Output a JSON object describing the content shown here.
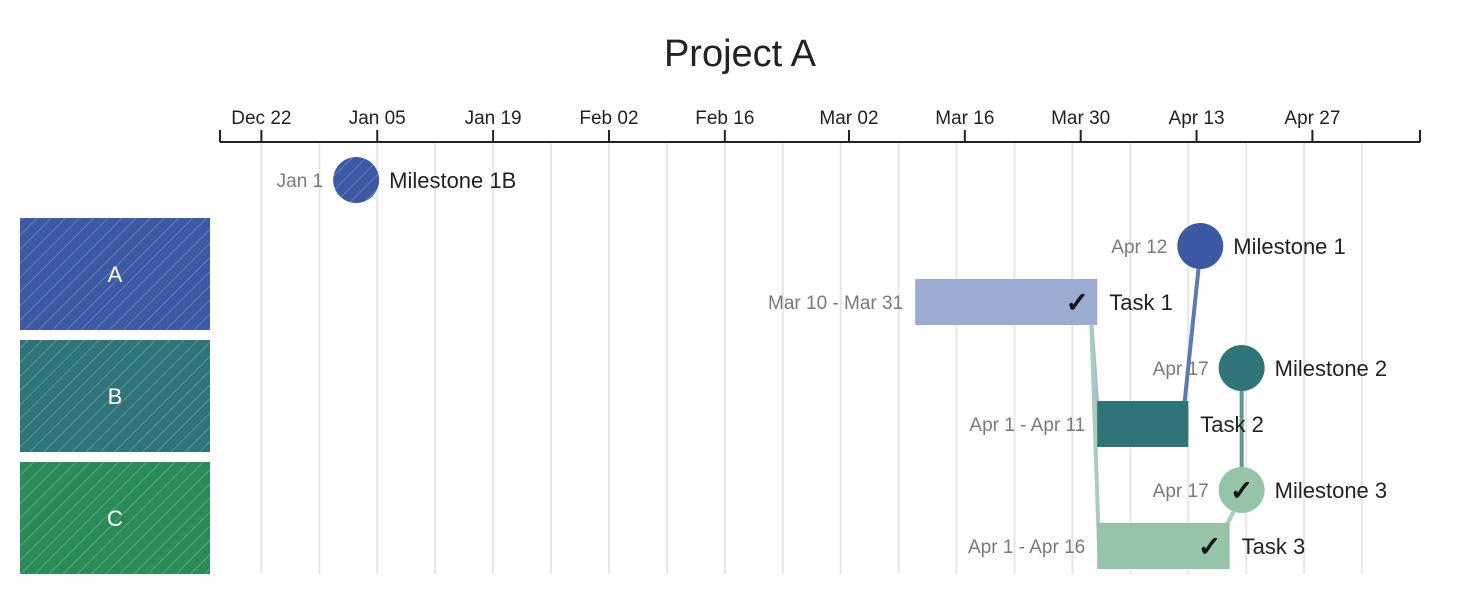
{
  "chart_data": {
    "type": "gantt",
    "title": "Project A",
    "x_axis": {
      "start": "2023-12-17",
      "end": "2024-05-10",
      "tick_labels": [
        "Dec 22",
        "Jan 05",
        "Jan 19",
        "Feb 02",
        "Feb 16",
        "Mar 02",
        "Mar 16",
        "Mar 30",
        "Apr 13",
        "Apr 27"
      ],
      "tick_dates": [
        "2023-12-22",
        "2024-01-05",
        "2024-01-19",
        "2024-02-02",
        "2024-02-16",
        "2024-03-02",
        "2024-03-16",
        "2024-03-30",
        "2024-04-13",
        "2024-04-27"
      ],
      "grid": true
    },
    "groups": [
      {
        "label": "A",
        "color": "#3b5aa3"
      },
      {
        "label": "B",
        "color": "#2e7478"
      },
      {
        "label": "C",
        "color": "#2a8a58"
      }
    ],
    "items": [
      {
        "id": "m1b",
        "kind": "milestone",
        "name": "Milestone 1B",
        "group": null,
        "date": "2024-01-01",
        "date_label": "Jan 1",
        "color": "#3b5aa3",
        "hatched": true,
        "done": false
      },
      {
        "id": "m1",
        "kind": "milestone",
        "name": "Milestone 1",
        "group": "A",
        "date": "2024-04-12",
        "date_label": "Apr 12",
        "color": "#3b5aa3",
        "hatched": false,
        "done": false
      },
      {
        "id": "t1",
        "kind": "task",
        "name": "Task 1",
        "group": "A",
        "start": "2024-03-10",
        "end": "2024-03-31",
        "date_label": "Mar 10 - Mar 31",
        "color": "#9babd2",
        "hatched": true,
        "done": true
      },
      {
        "id": "m2",
        "kind": "milestone",
        "name": "Milestone 2",
        "group": "B",
        "date": "2024-04-17",
        "date_label": "Apr 17",
        "color": "#2e7478",
        "hatched": false,
        "done": false
      },
      {
        "id": "t2",
        "kind": "task",
        "name": "Task 2",
        "group": "B",
        "start": "2024-04-01",
        "end": "2024-04-11",
        "date_label": "Apr 1 - Apr 11",
        "color": "#2e7478",
        "hatched": false,
        "done": false
      },
      {
        "id": "m3",
        "kind": "milestone",
        "name": "Milestone 3",
        "group": "C",
        "date": "2024-04-17",
        "date_label": "Apr 17",
        "color": "#95c4a8",
        "hatched": false,
        "done": true
      },
      {
        "id": "t3",
        "kind": "task",
        "name": "Task 3",
        "group": "C",
        "start": "2024-04-01",
        "end": "2024-04-16",
        "date_label": "Apr 1 - Apr 16",
        "color": "#95c4a8",
        "hatched": true,
        "done": true
      }
    ],
    "dependencies": [
      {
        "from": "t1",
        "to": "t2",
        "color": "#a9b7d9"
      },
      {
        "from": "t1",
        "to": "t3",
        "color": "#a8cdb8"
      },
      {
        "from": "t2",
        "to": "m1",
        "color": "#5b7ab0"
      },
      {
        "from": "t3",
        "to": "m3",
        "color": "#a8cdb8"
      },
      {
        "from": "m3",
        "to": "m2",
        "color": "#5e9a8c"
      }
    ],
    "check_mark": "✓"
  }
}
